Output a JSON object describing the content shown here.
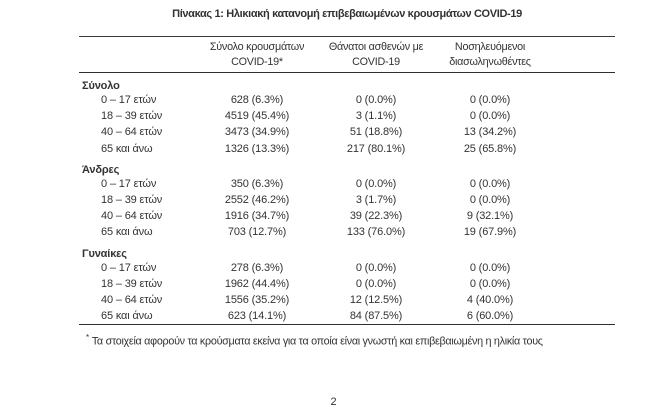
{
  "page": {
    "title": "Πίνακας 1: Ηλικιακή κατανομή επιβεβαιωμένων κρουσμάτων COVID-19",
    "footnote_marker": "*",
    "footnote_text": "Τα στοιχεία αφορούν τα κρούσματα εκείνα για τα οποία είναι γνωστή και επιβεβαιωμένη η ηλικία τους",
    "page_number": "2"
  },
  "table": {
    "columns": [
      {
        "line1": "Σύνολο κρουσμάτων",
        "line2": "COVID-19*"
      },
      {
        "line1": "Θάνατοι ασθενών με",
        "line2": "COVID-19"
      },
      {
        "line1": "Νοσηλευόμενοι",
        "line2": "διασωληνωθέντες"
      }
    ],
    "sections": [
      {
        "label": "Σύνολο",
        "rows": [
          {
            "age": "0 – 17 ετών",
            "cases": "628 (6.3%)",
            "deaths": "0 (0.0%)",
            "intubated": "0 (0.0%)"
          },
          {
            "age": "18 – 39 ετών",
            "cases": "4519 (45.4%)",
            "deaths": "3 (1.1%)",
            "intubated": "0 (0.0%)"
          },
          {
            "age": "40 – 64 ετών",
            "cases": "3473 (34.9%)",
            "deaths": "51 (18.8%)",
            "intubated": "13 (34.2%)"
          },
          {
            "age": "65 και άνω",
            "cases": "1326 (13.3%)",
            "deaths": "217 (80.1%)",
            "intubated": "25 (65.8%)"
          }
        ]
      },
      {
        "label": "Άνδρες",
        "rows": [
          {
            "age": "0 – 17 ετών",
            "cases": "350 (6.3%)",
            "deaths": "0 (0.0%)",
            "intubated": "0 (0.0%)"
          },
          {
            "age": "18 – 39 ετών",
            "cases": "2552 (46.2%)",
            "deaths": "3 (1.7%)",
            "intubated": "0 (0.0%)"
          },
          {
            "age": "40 – 64 ετών",
            "cases": "1916 (34.7%)",
            "deaths": "39 (22.3%)",
            "intubated": "9 (32.1%)"
          },
          {
            "age": "65 και άνω",
            "cases": "703 (12.7%)",
            "deaths": "133 (76.0%)",
            "intubated": "19 (67.9%)"
          }
        ]
      },
      {
        "label": "Γυναίκες",
        "rows": [
          {
            "age": "0 – 17 ετών",
            "cases": "278 (6.3%)",
            "deaths": "0 (0.0%)",
            "intubated": "0 (0.0%)"
          },
          {
            "age": "18 – 39 ετών",
            "cases": "1962 (44.4%)",
            "deaths": "0 (0.0%)",
            "intubated": "0 (0.0%)"
          },
          {
            "age": "40 – 64 ετών",
            "cases": "1556 (35.2%)",
            "deaths": "12 (12.5%)",
            "intubated": "4 (40.0%)"
          },
          {
            "age": "65 και άνω",
            "cases": "623 (14.1%)",
            "deaths": "84 (87.5%)",
            "intubated": "6 (60.0%)"
          }
        ]
      }
    ]
  },
  "colors": {
    "text": "#333333",
    "rule": "#2e2e2e",
    "background": "#ffffff"
  }
}
